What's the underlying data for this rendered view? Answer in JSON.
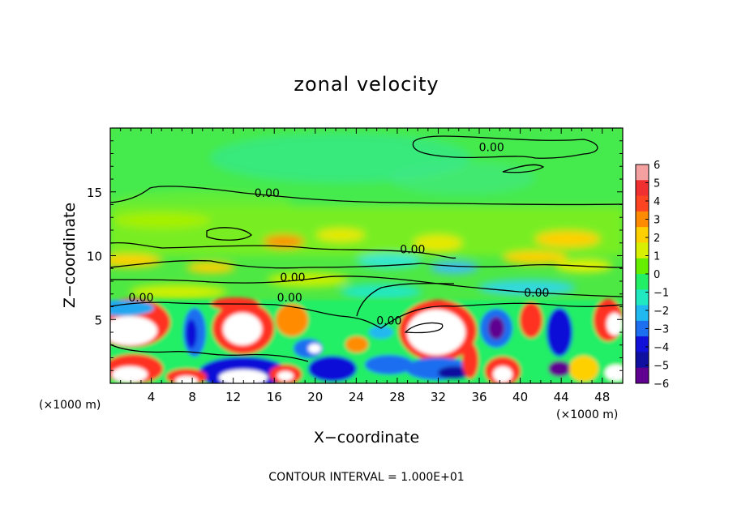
{
  "chart_data": {
    "type": "heatmap",
    "title": "zonal velocity",
    "xlabel": "X−coordinate",
    "ylabel": "Z−coordinate",
    "x_unit_left": "(×1000 m)",
    "x_unit_right": "(×1000 m)",
    "xlim": [
      0,
      50
    ],
    "ylim": [
      0,
      20
    ],
    "x_ticks": [
      4,
      8,
      12,
      16,
      20,
      24,
      28,
      32,
      36,
      40,
      44,
      48
    ],
    "y_ticks": [
      5,
      10,
      15
    ],
    "colorbar": {
      "ticks": [
        "6",
        "5",
        "4",
        "3",
        "2",
        "1",
        "0",
        "−1",
        "−2",
        "−3",
        "−4",
        "−5",
        "−6"
      ],
      "colors": [
        "#f4a0a0",
        "#f03030",
        "#ff4422",
        "#ff8c00",
        "#ffd000",
        "#d8f000",
        "#66ee00",
        "#22ee66",
        "#20e8c0",
        "#20b8f0",
        "#1e6ef0",
        "#1010d8",
        "#1010a0",
        "#600090"
      ]
    },
    "contour_labels": [
      {
        "text": "0.00",
        "x": 15.3,
        "y": 14.6
      },
      {
        "text": "0.00",
        "x": 37.2,
        "y": 18.2
      },
      {
        "text": "0.00",
        "x": 29.5,
        "y": 10.2
      },
      {
        "text": "0.00",
        "x": 17.8,
        "y": 8.0
      },
      {
        "text": "0.00",
        "x": 3.0,
        "y": 6.4
      },
      {
        "text": "0.00",
        "x": 17.5,
        "y": 6.4
      },
      {
        "text": "0.00",
        "x": 27.2,
        "y": 4.6
      },
      {
        "text": "0.00",
        "x": 41.6,
        "y": 6.8
      }
    ],
    "footer": "CONTOUR INTERVAL = 1.000E+01"
  }
}
